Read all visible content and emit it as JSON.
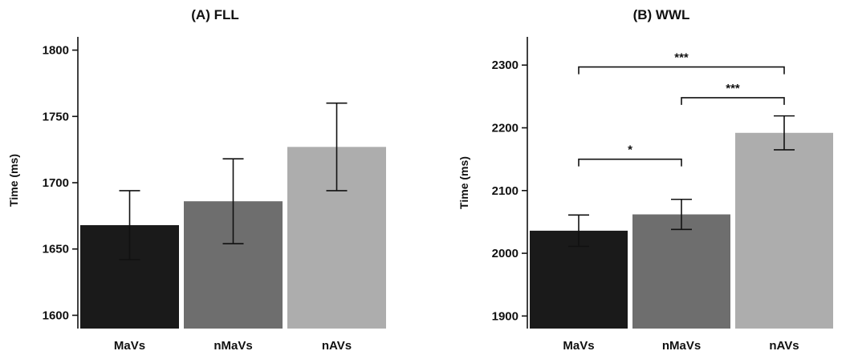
{
  "chart_data": [
    {
      "type": "bar",
      "title": "(A) FLL",
      "ylabel": "Time (ms)",
      "categories": [
        "MaVs",
        "nMaVs",
        "nAVs"
      ],
      "values": [
        1668,
        1686,
        1727
      ],
      "errors": [
        26,
        32,
        33
      ],
      "ylim": [
        1590,
        1810
      ],
      "yticks": [
        1600,
        1650,
        1700,
        1750,
        1800
      ],
      "colors": [
        "#1a1a1a",
        "#6e6e6e",
        "#adadad"
      ],
      "significance": []
    },
    {
      "type": "bar",
      "title": "(B) WWL",
      "ylabel": "Time (ms)",
      "categories": [
        "MaVs",
        "nMaVs",
        "nAVs"
      ],
      "values": [
        2036,
        2062,
        2192
      ],
      "errors": [
        25,
        24,
        27
      ],
      "ylim": [
        1880,
        2345
      ],
      "yticks": [
        1900,
        2000,
        2100,
        2200,
        2300
      ],
      "colors": [
        "#1a1a1a",
        "#6e6e6e",
        "#adadad"
      ],
      "significance": [
        {
          "from": 0,
          "to": 2,
          "label": "***",
          "level": 2297
        },
        {
          "from": 1,
          "to": 2,
          "label": "***",
          "level": 2248
        },
        {
          "from": 0,
          "to": 1,
          "label": "*",
          "level": 2150
        }
      ]
    }
  ]
}
